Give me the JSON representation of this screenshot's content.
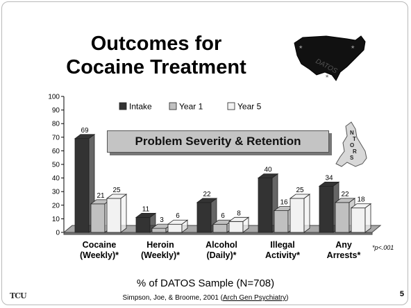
{
  "slide": {
    "title_line1": "Outcomes for",
    "title_line2": "Cocaine Treatment",
    "banner": "Problem Severity & Retention",
    "map_label_us": "DATOS",
    "map_label_uk": "NTORS",
    "pvalue_note": "*p<.001",
    "caption": "% of DATOS Sample (N=708)",
    "citation_text": "Simpson, Joe, & Broome, 2001 (",
    "citation_link": "Arch Gen Psychiatry",
    "citation_close": ")",
    "page_number": "5",
    "logo_text": "TCU"
  },
  "colors": {
    "intake": "#333333",
    "year1": "#c0c0c0",
    "year5": "#f2f2f2",
    "floor": "#a9a9a9"
  },
  "chart_data": {
    "type": "bar",
    "categories": [
      [
        "Cocaine",
        "(Weekly)*"
      ],
      [
        "Heroin",
        "(Weekly)*"
      ],
      [
        "Alcohol",
        "(Daily)*"
      ],
      [
        "Illegal",
        "Activity*"
      ],
      [
        "Any",
        "Arrests*"
      ]
    ],
    "series": [
      {
        "name": "Intake",
        "values": [
          69,
          11,
          22,
          40,
          34
        ]
      },
      {
        "name": "Year 1",
        "values": [
          21,
          3,
          6,
          16,
          22
        ]
      },
      {
        "name": "Year 5",
        "values": [
          25,
          6,
          8,
          25,
          18
        ]
      }
    ],
    "ylim": [
      0,
      100
    ],
    "yticks": [
      0,
      10,
      20,
      30,
      40,
      50,
      60,
      70,
      80,
      90,
      100
    ],
    "legend_position": "top",
    "grid": false
  }
}
